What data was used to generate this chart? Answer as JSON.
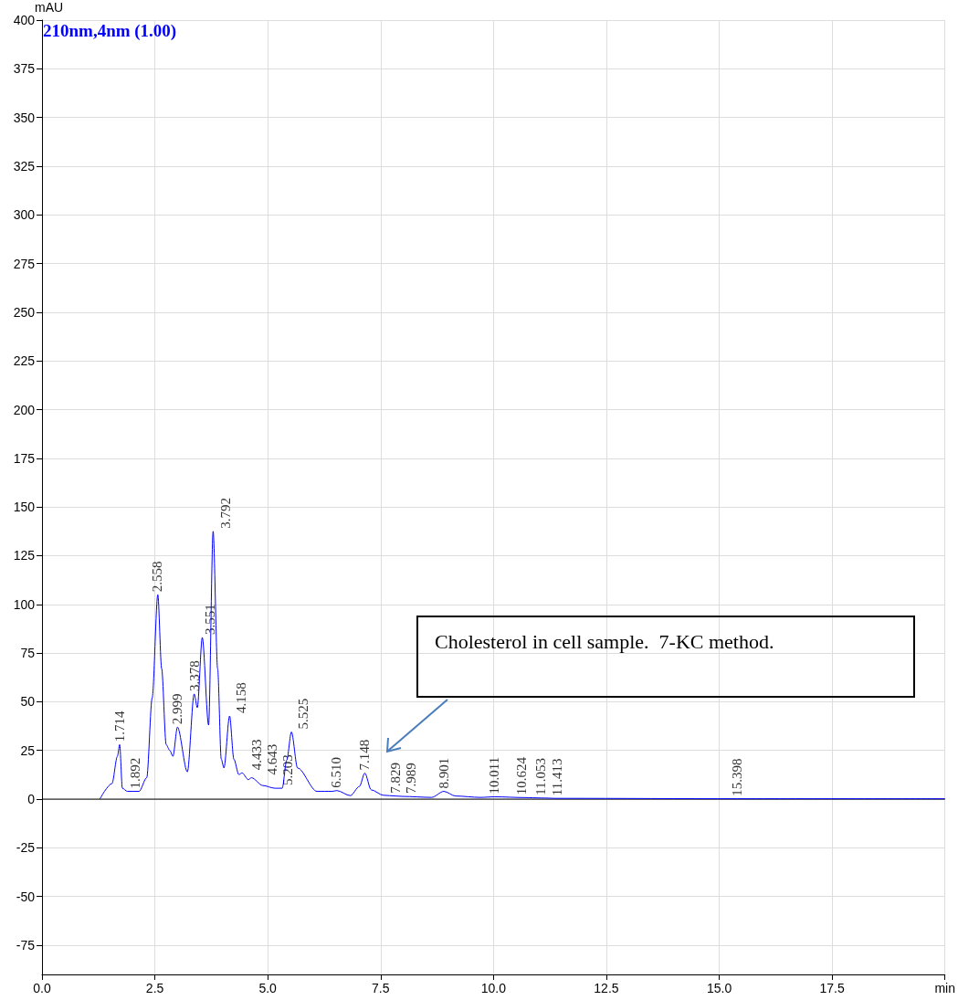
{
  "chart_data": {
    "type": "line",
    "ylabel": "mAU",
    "xlim": [
      0,
      20
    ],
    "ylim": [
      -90,
      400
    ],
    "xticks": [
      {
        "value": 0,
        "label": "0.0"
      },
      2.5,
      {
        "value": 5,
        "label": "5.0"
      },
      7.5,
      {
        "value": 10,
        "label": "10.0"
      },
      12.5,
      {
        "value": 15,
        "label": "15.0"
      },
      17.5,
      {
        "value": 20,
        "label": "min"
      }
    ],
    "yticks": [
      -75,
      -50,
      -25,
      0,
      25,
      50,
      75,
      100,
      125,
      150,
      175,
      200,
      225,
      250,
      275,
      300,
      325,
      350,
      375,
      400
    ],
    "grid": true,
    "legend": "top left",
    "marker": "none",
    "line_style": "solid",
    "series": [
      {
        "name": "210nm,4nm (1.00)",
        "color": "#0000ff",
        "x": [
          1.28,
          1.55,
          1.67,
          1.72,
          1.78,
          1.89,
          2.15,
          2.32,
          2.44,
          2.565,
          2.65,
          2.75,
          2.83,
          2.9,
          3.0,
          3.22,
          3.37,
          3.44,
          3.55,
          3.69,
          3.79,
          3.89,
          3.97,
          4.03,
          4.155,
          4.25,
          4.36,
          4.43,
          4.57,
          4.64,
          4.89,
          5.16,
          5.32,
          5.42,
          5.525,
          5.66,
          6.09,
          6.43,
          6.53,
          6.83,
          7.03,
          7.15,
          7.29,
          7.56,
          7.83,
          7.99,
          8.63,
          8.9,
          9.16,
          9.71,
          10.03,
          10.7,
          11.05,
          11.41,
          11.57,
          15.4,
          20
        ],
        "values": [
          0,
          8,
          22,
          28,
          5.6,
          4,
          4,
          11,
          52,
          105,
          67,
          28,
          25,
          22,
          37,
          14,
          54,
          47,
          83,
          38,
          137.5,
          67,
          20.6,
          16,
          42.7,
          20.5,
          12.6,
          13.5,
          10,
          11,
          7,
          5.6,
          5.6,
          20,
          34.5,
          16,
          4,
          4,
          4.4,
          1.8,
          6.5,
          13.4,
          4.8,
          2,
          1.6,
          1.4,
          0.9,
          4,
          1.6,
          0.9,
          1.2,
          0.8,
          0.6,
          0.4,
          0.4,
          0.2,
          0.2
        ]
      }
    ],
    "annotations": [
      {
        "text": "1.714",
        "x": 1.714,
        "y": 28
      },
      {
        "text": "1.892",
        "x": 1.892,
        "y": 4
      },
      {
        "text": "2.558",
        "x": 2.558,
        "y": 105
      },
      {
        "text": "2.999",
        "x": 2.999,
        "y": 37
      },
      {
        "text": "3.378",
        "x": 3.378,
        "y": 54
      },
      {
        "text": "3.551",
        "x": 3.551,
        "y": 83
      },
      {
        "text": "3.792",
        "x": 3.792,
        "y": 137.5
      },
      {
        "text": "4.158",
        "x": 4.158,
        "y": 42.7
      },
      {
        "text": "4.433",
        "x": 4.433,
        "y": 13.5
      },
      {
        "text": "4.643",
        "x": 4.643,
        "y": 11
      },
      {
        "text": "5.203",
        "x": 5.203,
        "y": 5.6
      },
      {
        "text": "5.525",
        "x": 5.525,
        "y": 34.5
      },
      {
        "text": "6.510",
        "x": 6.51,
        "y": 4.4
      },
      {
        "text": "7.148",
        "x": 7.148,
        "y": 13.4
      },
      {
        "text": "7.829",
        "x": 7.829,
        "y": 1.6
      },
      {
        "text": "7.989",
        "x": 7.989,
        "y": 1.4
      },
      {
        "text": "8.901",
        "x": 8.901,
        "y": 4
      },
      {
        "text": "10.011",
        "x": 10.011,
        "y": 1.2
      },
      {
        "text": "10.624",
        "x": 10.624,
        "y": 0.8
      },
      {
        "text": "11.053",
        "x": 11.053,
        "y": 0.6
      },
      {
        "text": "11.413",
        "x": 11.413,
        "y": 0.4
      },
      {
        "text": "15.398",
        "x": 15.398,
        "y": 0.2
      },
      "Cholesterol in cell sample.  7-KC method."
    ]
  }
}
